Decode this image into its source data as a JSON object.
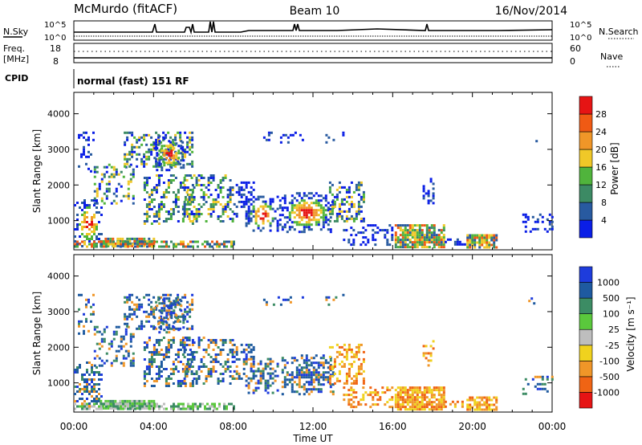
{
  "header": {
    "station": "McMurdo (fitACF)",
    "beam": "Beam 10",
    "date": "16/Nov/2014"
  },
  "summary": {
    "nsky_label": "N.Sky",
    "nsky_ticks": [
      "10^5",
      "10^0"
    ],
    "nsearch_label": "N.Search",
    "freq_label_1": "Freq.",
    "freq_label_2": "[MHz]",
    "freq_ticks": [
      "18",
      "8"
    ],
    "nave_label": "Nave",
    "nave_ticks": [
      "60",
      "0"
    ],
    "cpid_label": "CPID",
    "cpid_text": "normal (fast) 151 RF"
  },
  "colors": {
    "power_scale": [
      "#0a1ee6",
      "#285aa0",
      "#3c8a64",
      "#50b43c",
      "#f0c828",
      "#f09628",
      "#f05a14",
      "#e61414"
    ],
    "velocity_scale": [
      "#1e3cdc",
      "#1e5aa0",
      "#3c8c64",
      "#5ac83c",
      "#bebebe",
      "#f0d21e",
      "#f09628",
      "#f06414",
      "#e61414"
    ]
  },
  "chart_data": [
    {
      "type": "heatmap",
      "name": "power",
      "ylabel": "Slant Range [km]",
      "xlabel": "",
      "x_ticks": [
        "00:00",
        "04:00",
        "08:00",
        "12:00",
        "16:00",
        "20:00",
        "00:00"
      ],
      "y_ticks": [
        1000,
        2000,
        3000,
        4000
      ],
      "ylim": [
        180,
        4600
      ],
      "colorbar_label": "Power [dB]",
      "colorbar_ticks": [
        4,
        8,
        12,
        16,
        20,
        24,
        28
      ]
    },
    {
      "type": "heatmap",
      "name": "velocity",
      "ylabel": "Slant Range [km]",
      "xlabel": "Time UT",
      "x_ticks": [
        "00:00",
        "04:00",
        "08:00",
        "12:00",
        "16:00",
        "20:00",
        "00:00"
      ],
      "y_ticks": [
        1000,
        2000,
        3000,
        4000
      ],
      "ylim": [
        180,
        4600
      ],
      "colorbar_label": "Velocity [m s⁻¹]",
      "colorbar_ticks": [
        "1000",
        "500",
        "100",
        "25",
        "-25",
        "-100",
        "-500",
        "-1000"
      ]
    }
  ]
}
